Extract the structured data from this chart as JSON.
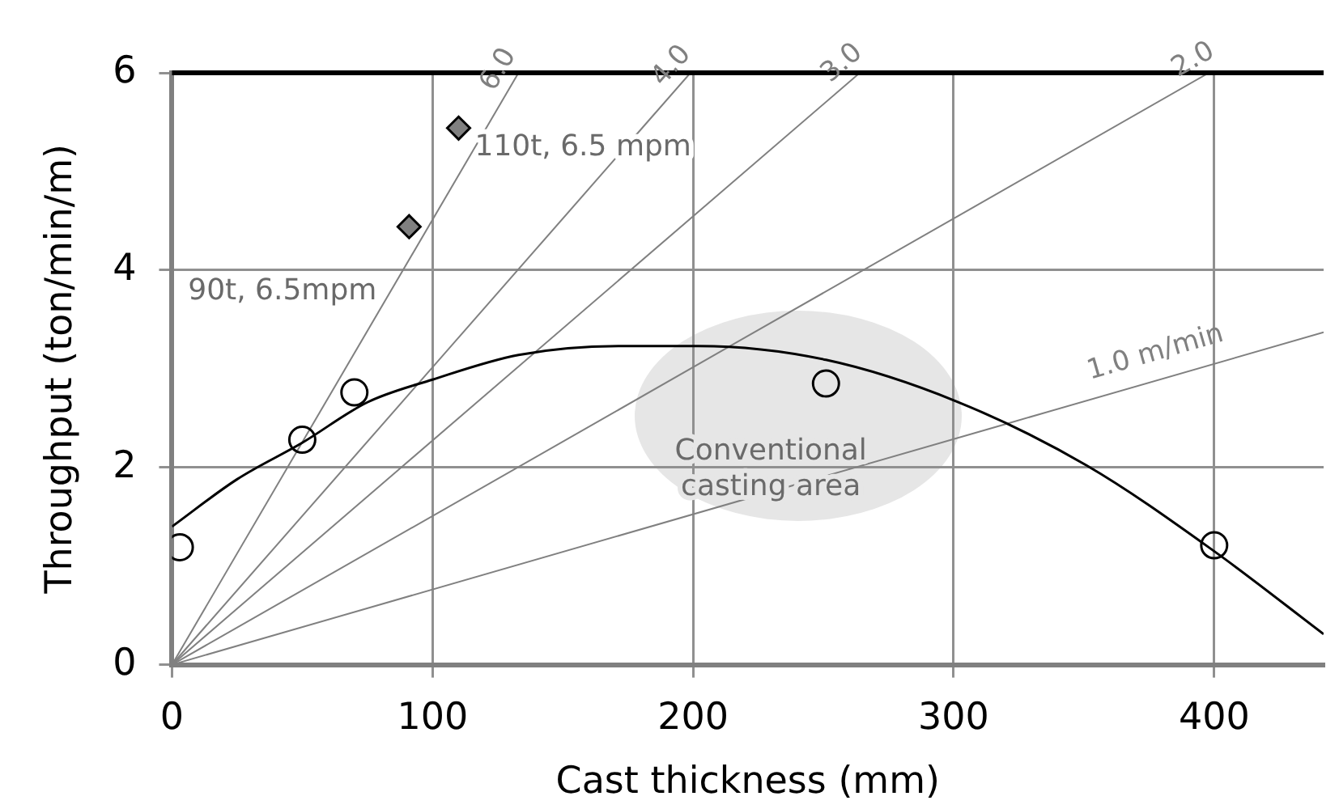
{
  "chart_data": {
    "type": "line",
    "xlabel": "Cast thickness (mm)",
    "ylabel": "Throughput (ton/min/m)",
    "xlim": [
      0,
      442
    ],
    "xticks": [
      0,
      100,
      200,
      300,
      400
    ],
    "ylim": [
      0,
      6
    ],
    "yticks": [
      0,
      2,
      4,
      6
    ],
    "grid": true,
    "legend": false,
    "series": [
      {
        "color": "#000000",
        "marker": "none",
        "x": [
          0,
          25,
          50,
          75,
          100,
          133,
          172,
          202,
          251,
          301,
          351,
          400,
          442
        ],
        "values": [
          1.4,
          1.88,
          2.25,
          2.66,
          2.89,
          3.14,
          3.23,
          3.23,
          3.09,
          2.67,
          2.02,
          1.15,
          0.31
        ]
      },
      {
        "name": "6.0",
        "color": "#808080",
        "marker": "none",
        "x": [
          0,
          133
        ],
        "values": [
          0,
          6
        ]
      },
      {
        "name": "4.0",
        "color": "#808080",
        "marker": "none",
        "x": [
          0,
          199
        ],
        "values": [
          0,
          6
        ]
      },
      {
        "name": "3.0",
        "color": "#808080",
        "marker": "none",
        "x": [
          0,
          264
        ],
        "values": [
          0,
          6
        ]
      },
      {
        "name": "2.0",
        "color": "#808080",
        "marker": "none",
        "x": [
          0,
          398
        ],
        "values": [
          0,
          6
        ]
      },
      {
        "name": "1.0 m/min",
        "color": "#808080",
        "marker": "none",
        "x": [
          0,
          442
        ],
        "values": [
          0,
          3.37
        ]
      },
      {
        "type": "scatter",
        "color": "#000000",
        "marker": "circle",
        "x": [
          3,
          50,
          70,
          251,
          400
        ],
        "values": [
          1.19,
          2.28,
          2.76,
          2.85,
          1.21
        ]
      },
      {
        "type": "scatter",
        "color": "#808080",
        "marker": "diamond",
        "x": [
          91,
          110
        ],
        "values": [
          4.44,
          5.44
        ]
      }
    ],
    "annotations": [
      {
        "text": "110t, 6.5 mpm",
        "x": 110,
        "y": 5.44
      },
      {
        "text": "90t, 6.5mpm",
        "x": 91,
        "y": 4.44
      },
      "Conventional casting area"
    ]
  }
}
